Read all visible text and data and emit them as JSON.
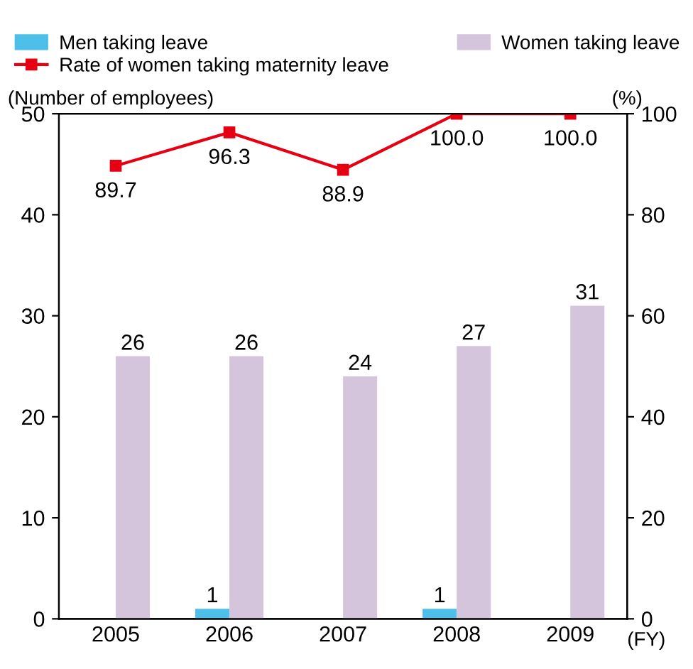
{
  "chart_data": {
    "type": "bar",
    "categories": [
      "2005",
      "2006",
      "2007",
      "2008",
      "2009"
    ],
    "xlabel": "(FY)",
    "ylabel": "(Number of employees)",
    "y2label": "(%)",
    "series": [
      {
        "name": "Men taking leave",
        "color": "#4dbfe9",
        "values": [
          null,
          1,
          null,
          1,
          null
        ]
      },
      {
        "name": "Women taking leave",
        "color": "#d4c5dc",
        "values": [
          26,
          26,
          24,
          27,
          31
        ]
      },
      {
        "name": "Rate of women taking maternity leave",
        "type": "line",
        "axis": "y2",
        "color": "#e60012",
        "value_labels": [
          "89.7",
          "96.3",
          "88.9",
          "100.0",
          "100.0"
        ],
        "values": [
          89.7,
          96.3,
          88.9,
          100.0,
          100.0
        ]
      }
    ],
    "data_labels": true,
    "marker": "square",
    "line_style": "solid",
    "ylim": [
      0,
      50
    ],
    "yticks": [
      0,
      10,
      20,
      30,
      40,
      50
    ],
    "y2lim": [
      0,
      100
    ],
    "y2ticks": [
      0,
      20,
      40,
      60,
      80,
      100
    ],
    "grid": false,
    "legend": "top"
  }
}
